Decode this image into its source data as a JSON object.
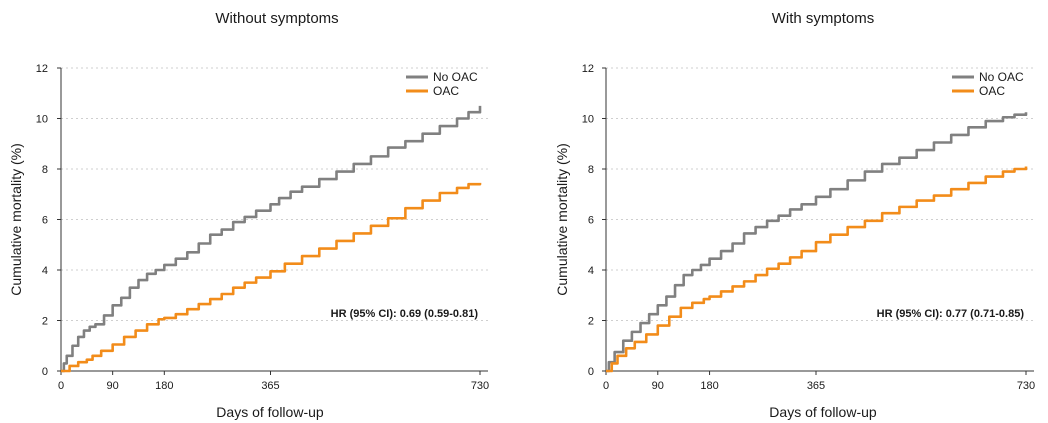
{
  "colors": {
    "no_oac": "#808080",
    "oac": "#f28c1a"
  },
  "chart_data": [
    {
      "type": "line",
      "title": "Without symptoms",
      "xlabel": "Days of follow-up",
      "ylabel": "Cumulative mortality (%)",
      "xlim": [
        0,
        730
      ],
      "ylim": [
        0,
        12
      ],
      "xticks": [
        0,
        90,
        180,
        365,
        730
      ],
      "yticks": [
        0,
        2,
        4,
        6,
        8,
        10,
        12
      ],
      "grid": "horizontal dotted",
      "legend_position": "top-right",
      "annotation": "HR (95% CI): 0.69 (0.59-0.81)",
      "series": [
        {
          "name": "No OAC",
          "color": "#808080",
          "x": [
            0,
            5,
            10,
            20,
            30,
            40,
            50,
            60,
            75,
            90,
            105,
            120,
            135,
            150,
            165,
            180,
            200,
            220,
            240,
            260,
            280,
            300,
            320,
            340,
            365,
            380,
            400,
            420,
            450,
            480,
            510,
            540,
            570,
            600,
            630,
            660,
            690,
            710,
            730
          ],
          "y": [
            0,
            0.3,
            0.6,
            1.0,
            1.35,
            1.6,
            1.75,
            1.85,
            2.2,
            2.6,
            2.9,
            3.3,
            3.6,
            3.85,
            4.0,
            4.2,
            4.45,
            4.7,
            5.05,
            5.4,
            5.6,
            5.9,
            6.1,
            6.35,
            6.6,
            6.85,
            7.1,
            7.3,
            7.6,
            7.9,
            8.2,
            8.5,
            8.85,
            9.1,
            9.4,
            9.7,
            10.0,
            10.25,
            10.5
          ]
        },
        {
          "name": "OAC",
          "color": "#f28c1a",
          "x": [
            0,
            15,
            30,
            45,
            55,
            70,
            90,
            110,
            130,
            150,
            170,
            180,
            200,
            220,
            240,
            260,
            280,
            300,
            320,
            340,
            365,
            390,
            420,
            450,
            480,
            510,
            540,
            570,
            600,
            630,
            660,
            690,
            710,
            730
          ],
          "y": [
            0,
            0.2,
            0.35,
            0.45,
            0.6,
            0.8,
            1.05,
            1.35,
            1.6,
            1.85,
            2.05,
            2.1,
            2.25,
            2.45,
            2.65,
            2.85,
            3.05,
            3.3,
            3.5,
            3.7,
            3.95,
            4.25,
            4.55,
            4.85,
            5.15,
            5.45,
            5.75,
            6.05,
            6.45,
            6.75,
            7.05,
            7.25,
            7.4,
            7.45
          ]
        }
      ]
    },
    {
      "type": "line",
      "title": "With symptoms",
      "xlabel": "Days of follow-up",
      "ylabel": "Cumulative mortality (%)",
      "xlim": [
        0,
        730
      ],
      "ylim": [
        0,
        12
      ],
      "xticks": [
        0,
        90,
        180,
        365,
        730
      ],
      "yticks": [
        0,
        2,
        4,
        6,
        8,
        10,
        12
      ],
      "grid": "horizontal dotted",
      "legend_position": "top-right",
      "annotation": "HR (95% CI): 0.77 (0.71-0.85)",
      "series": [
        {
          "name": "No OAC",
          "color": "#808080",
          "x": [
            0,
            5,
            15,
            30,
            45,
            60,
            75,
            90,
            105,
            120,
            135,
            150,
            165,
            180,
            200,
            220,
            240,
            260,
            280,
            300,
            320,
            340,
            365,
            390,
            420,
            450,
            480,
            510,
            540,
            570,
            600,
            630,
            660,
            690,
            710,
            730
          ],
          "y": [
            0,
            0.35,
            0.75,
            1.2,
            1.55,
            1.9,
            2.25,
            2.6,
            2.95,
            3.4,
            3.8,
            4.0,
            4.2,
            4.45,
            4.75,
            5.05,
            5.45,
            5.7,
            5.95,
            6.15,
            6.4,
            6.6,
            6.9,
            7.2,
            7.55,
            7.9,
            8.2,
            8.45,
            8.75,
            9.05,
            9.35,
            9.65,
            9.9,
            10.05,
            10.15,
            10.25
          ]
        },
        {
          "name": "OAC",
          "color": "#f28c1a",
          "x": [
            0,
            10,
            20,
            35,
            50,
            70,
            90,
            110,
            130,
            150,
            170,
            180,
            200,
            220,
            240,
            260,
            280,
            300,
            320,
            340,
            365,
            390,
            420,
            450,
            480,
            510,
            540,
            570,
            600,
            630,
            660,
            690,
            710,
            730
          ],
          "y": [
            0,
            0.3,
            0.6,
            0.9,
            1.15,
            1.45,
            1.8,
            2.15,
            2.5,
            2.7,
            2.85,
            2.95,
            3.15,
            3.35,
            3.55,
            3.8,
            4.05,
            4.25,
            4.5,
            4.75,
            5.1,
            5.4,
            5.7,
            5.95,
            6.25,
            6.5,
            6.75,
            6.95,
            7.2,
            7.45,
            7.7,
            7.9,
            8.0,
            8.1
          ]
        }
      ]
    }
  ]
}
